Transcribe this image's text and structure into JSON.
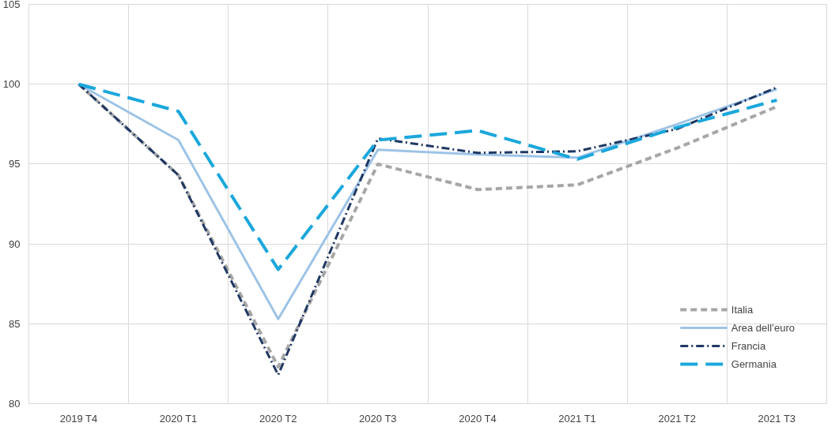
{
  "chart_data": {
    "type": "line",
    "categories": [
      "2019 T4",
      "2020 T1",
      "2020 T2",
      "2020 T3",
      "2020 T4",
      "2021 T1",
      "2021 T2",
      "2021 T3"
    ],
    "series": [
      {
        "name": "Italia",
        "color": "#a6a6a6",
        "line_style": "dashed",
        "values": [
          100,
          94.3,
          82.3,
          95.0,
          93.4,
          93.7,
          96.0,
          98.6
        ]
      },
      {
        "name": "Area dell’euro",
        "color": "#9dc3e6",
        "line_style": "solid",
        "values": [
          100,
          96.5,
          85.3,
          95.9,
          95.6,
          95.4,
          97.5,
          99.7
        ]
      },
      {
        "name": "Francia",
        "color": "#1f3864",
        "line_style": "dashdot",
        "values": [
          100,
          94.3,
          81.8,
          96.6,
          95.7,
          95.8,
          97.2,
          99.8
        ]
      },
      {
        "name": "Germania",
        "color": "#1aa7dc",
        "line_style": "longdash",
        "values": [
          100,
          98.3,
          88.4,
          96.5,
          97.1,
          95.3,
          97.3,
          99.0
        ]
      }
    ],
    "ylim": [
      80,
      105
    ],
    "yticks": [
      80,
      85,
      90,
      95,
      100,
      105
    ],
    "grid": true,
    "legend": "bottom right",
    "marker": "none"
  }
}
